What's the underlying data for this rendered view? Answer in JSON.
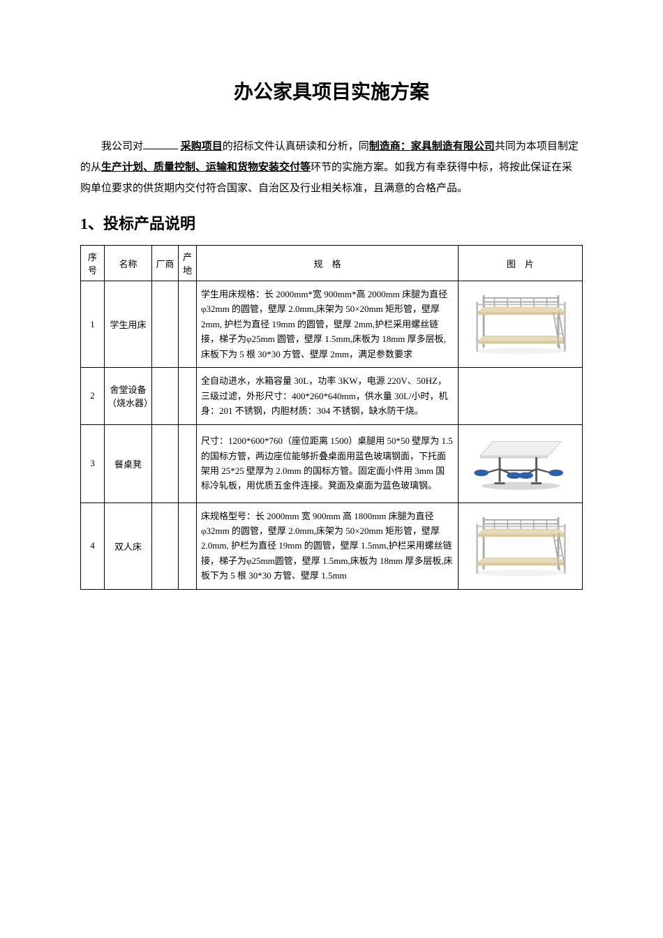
{
  "title": "办公家具项目实施方案",
  "intro": {
    "prefix": "我公司对",
    "project": "采购项目",
    "mid1": "的招标文件认真研读和分析，同",
    "manufacturer": "制造商：家具制造有限公司",
    "mid2": "共同为本项目制定的从",
    "phases": "生产计划、质量控制、运输和货物安装交付等",
    "tail": "环节的实施方案。如我方有幸获得中标，将按此保证在采购单位要求的供货期内交付符合国家、自治区及行业相关标准，且满意的合格产品。"
  },
  "section1_head": "、投标产品说明",
  "section1_num": "1",
  "table": {
    "headers": {
      "seq": "序号",
      "name": "名称",
      "vendor": "厂商",
      "origin": "产地",
      "spec": "规　格",
      "img": "图　片"
    },
    "rows": [
      {
        "seq": "1",
        "name": "学生用床",
        "vendor": "",
        "origin": "",
        "spec": "学生用床规格：长 2000mm*宽 900mm*高 2000mm 床腿为直径φ32mm 的圆管，壁厚 2.0mm,床架为 50×20mm 矩形管，壁厚 2mm, 护栏为直径 19mm 的圆管，壁厚 2mm,护栏采用螺丝链接，梯子为φ25mm 圆管，壁厚 1.5mm,床板为 18mm 厚多层板,床板下为 5 根 30*30 方管、壁厚 2mm，满足参数要求",
        "img_type": "bunk"
      },
      {
        "seq": "2",
        "name": "舍堂设备（烧水器）",
        "vendor": "",
        "origin": "",
        "spec": "全自动进水，水箱容量 30L，功率 3KW，电源 220V、50HZ，三级过滤，外形尺寸：400*260*640mm，供水量 30L/小时，机身：201 不锈钢，内胆材质：304 不锈钢，缺水防干烧。",
        "img_type": "none"
      },
      {
        "seq": "3",
        "name": "餐桌凳",
        "vendor": "",
        "origin": "",
        "spec": "尺寸：1200*600*760（座位距离 1500）桌腿用 50*50 壁厚为 1.5 的国标方管，两边座位能够折叠桌面用蓝色玻璃钢面，下托面架用 25*25 壁厚为 2.0mm 的国标方管。固定面小件用 3mm 国标冷轧板，用优质五金件连接。凳面及桌面为蓝色玻璃钢。",
        "img_type": "canteen"
      },
      {
        "seq": "4",
        "name": "双人床",
        "vendor": "",
        "origin": "",
        "spec": "床规格型号：长 2000mm 宽 900mm 高 1800mm 床腿为直径φ32mm 的圆管，壁厚 2.0mm,床架为 50×20mm 矩形管，壁厚 2.0mm, 护栏为直径 19mm 的圆管，壁厚 1.5mm,护栏采用螺丝链接，梯子为φ25mm圆管，壁厚 1.5mm,床板为 18mm 厚多层板,床板下为 5 根 30*30 方管、壁厚 1.5mm",
        "img_type": "bunk"
      }
    ]
  },
  "svg_colors": {
    "bunk_frame": "#a8a8a8",
    "bunk_frame_light": "#d0d0d0",
    "bunk_board": "#e8d9b8",
    "bunk_shadow": "#f2f2f2",
    "canteen_top": "#e8e8e8",
    "canteen_seat": "#2b5fa8",
    "canteen_frame": "#555555",
    "canteen_shadow": "#d8d8d8"
  }
}
